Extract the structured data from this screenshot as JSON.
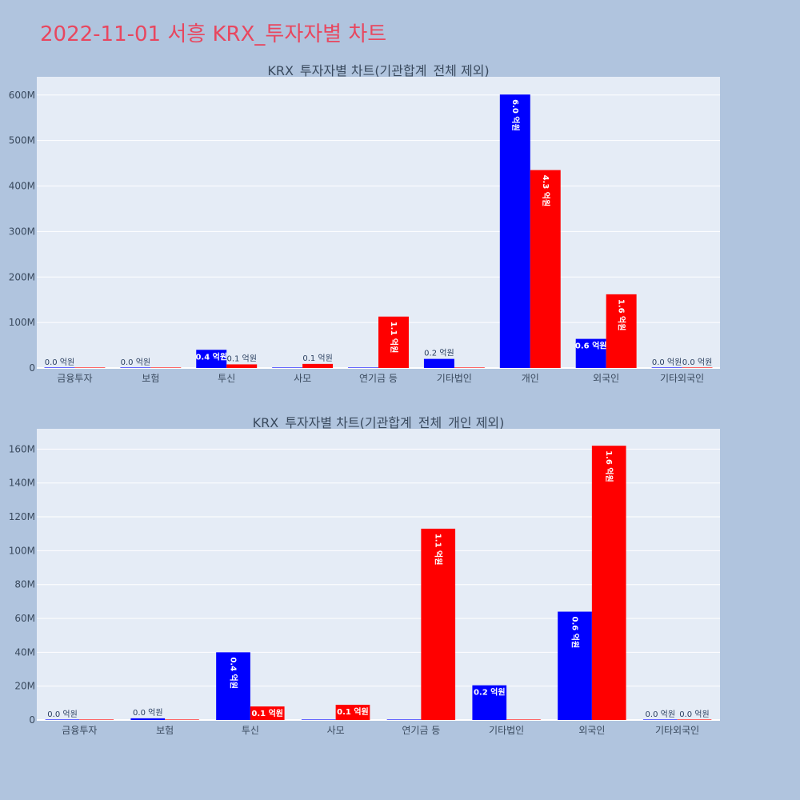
{
  "page_title": "2022-11-01 서흥 KRX_투자자별 차트",
  "colors": {
    "buy": "#0000ff",
    "sell": "#ff0000",
    "plot_bg": "#e5ecf6",
    "page_bg": "#b0c4de",
    "title": "#e8475f"
  },
  "chart_data": [
    {
      "type": "bar",
      "title": "KRX_투자자별 차트(기관합계_전체 제외)",
      "categories": [
        "금융투자",
        "보험",
        "투신",
        "사모",
        "연기금 등",
        "기타법인",
        "개인",
        "외국인",
        "기타외국인"
      ],
      "ylim": [
        0,
        640000000
      ],
      "yticks": [
        0,
        100000000,
        200000000,
        300000000,
        400000000,
        500000000,
        600000000
      ],
      "ytick_labels": [
        "0",
        "100M",
        "200M",
        "300M",
        "400M",
        "500M",
        "600M"
      ],
      "grid": true,
      "series": [
        {
          "color": "#0000ff",
          "values": [
            0,
            0,
            40000000,
            0,
            0,
            20000000,
            601000000,
            64000000,
            0
          ],
          "labels": [
            "0.0 억원",
            "0.0 억원",
            "0.4 억원",
            "",
            "",
            "0.2 억원",
            "6.0 억원",
            "0.6 억원",
            "0.0 억원"
          ]
        },
        {
          "color": "#ff0000",
          "values": [
            0,
            0,
            8000000,
            9000000,
            113000000,
            0,
            435000000,
            162000000,
            0
          ],
          "labels": [
            "",
            "",
            "0.1 억원",
            "0.1 억원",
            "1.1 억원",
            "",
            "4.3 억원",
            "1.6 억원",
            "0.0 억원"
          ]
        }
      ]
    },
    {
      "type": "bar",
      "title": "KRX_투자자별 차트(기관합계_전체_개인 제외)",
      "categories": [
        "금융투자",
        "보험",
        "투신",
        "사모",
        "연기금 등",
        "기타법인",
        "외국인",
        "기타외국인"
      ],
      "ylim": [
        0,
        172000000
      ],
      "yticks": [
        0,
        20000000,
        40000000,
        60000000,
        80000000,
        100000000,
        120000000,
        140000000,
        160000000
      ],
      "ytick_labels": [
        "0",
        "20M",
        "40M",
        "60M",
        "80M",
        "100M",
        "120M",
        "140M",
        "160M"
      ],
      "grid": true,
      "series": [
        {
          "color": "#0000ff",
          "values": [
            0,
            1000000,
            40000000,
            0,
            0,
            20500000,
            64000000,
            0
          ],
          "labels": [
            "0.0 억원",
            "0.0 억원",
            "0.4 억원",
            "",
            "",
            "0.2 억원",
            "0.6 억원",
            "0.0 억원"
          ]
        },
        {
          "color": "#ff0000",
          "values": [
            0,
            0,
            8000000,
            9000000,
            113000000,
            0,
            162000000,
            0
          ],
          "labels": [
            "",
            "",
            "0.1 억원",
            "0.1 억원",
            "1.1 억원",
            "",
            "1.6 억원",
            "0.0 억원"
          ]
        }
      ]
    }
  ]
}
